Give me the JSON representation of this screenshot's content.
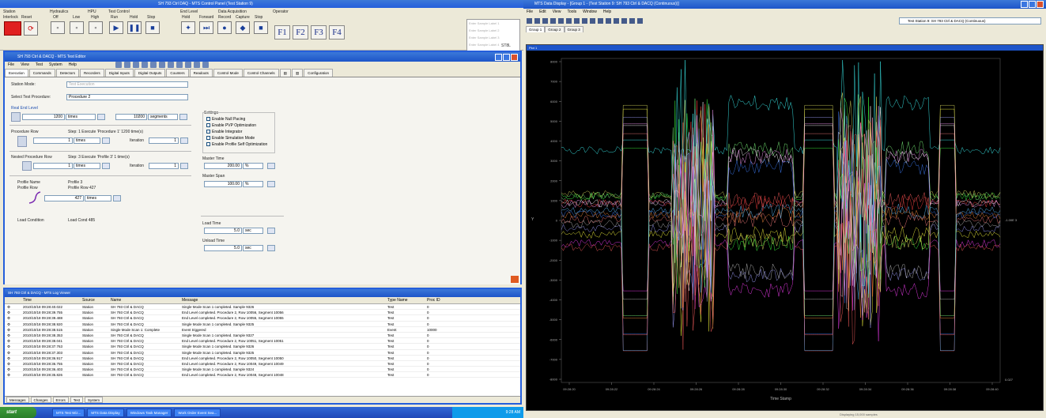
{
  "control_panel": {
    "title": "SH 793 Ctrl DAQ - MTS Control Panel (Test Station 9)",
    "station_group": "Station",
    "hydraulics_group": "Hydraulics",
    "hpu_group": "HPU",
    "test_control_group": "Test Control",
    "station_buttons": [
      "Interlock",
      "Reset"
    ],
    "hydraulic_buttons": [
      "Off",
      "Low",
      "High"
    ],
    "test_buttons": [
      "Run",
      "Hold",
      "Stop"
    ],
    "limit_group": "End Level",
    "daq_group": "Data Acquisition",
    "daq_buttons": [
      "Hold",
      "Forward",
      "Record",
      "Capture",
      "Stop"
    ],
    "operator_group": "Operator",
    "fkeys": [
      "F1",
      "F2",
      "F3",
      "F4"
    ],
    "ext_labels": [
      "Enter Sample Label 1",
      "Enter Sample Label 2",
      "Enter Sample Label 3",
      "Enter Sample Label 4"
    ],
    "ext_status": "ST8L"
  },
  "editor": {
    "title": "SH 793 Ctrl & DACQ - MTS Test Editor",
    "menu": [
      "File",
      "View",
      "Test",
      "System",
      "Help"
    ],
    "tabs": [
      "Execution",
      "Commands",
      "Detectors",
      "Recorders",
      "Digital Inputs",
      "Digital Outputs",
      "Counters",
      "Readouts",
      "Control Mode",
      "Control Channels",
      "",
      "",
      "Configuration"
    ],
    "station_mode_label": "Station Mode:",
    "station_mode_value": "Test Execution",
    "select_procedure_label": "Select Test Procedure:",
    "select_procedure_value": "Procedure 2",
    "end_level_label": "Real End Level",
    "end_level_value": "1200",
    "end_level_unit": "times",
    "segments_value": "10200",
    "segments_unit": "segments",
    "procedure_row_label": "Procedure Row",
    "procedure_row_info": "Step: 1 Execute 'Procedure 1' 1200 time(s)",
    "procedure_row_value": "1",
    "procedure_row_unit": "times",
    "iteration_label": "Iteration",
    "iteration_value": "1",
    "nested_label": "Nested Procedure Row",
    "nested_info": "Step: 3 Execute 'Profile 3' 1 time(s)",
    "nested_value": "1",
    "nested_unit": "times",
    "nested_iter_label": "Iteration",
    "nested_iter_value": "1",
    "profile_name_label": "Profile Name",
    "profile_name_value": "Profile 3",
    "profile_row_label": "Profile Row",
    "profile_row_value": "Profile Row 427",
    "profile_row_field": "427",
    "profile_row_unit": "times",
    "load_condition_label": "Load Condition",
    "load_condition_value": "Load Cond 485",
    "settings_title": "Settings",
    "settings": [
      "Enable Null Pacing",
      "Enable PVP Optimization",
      "Enable Integrator",
      "Enable Simulation Mode",
      "Enable Profile Self Optimization"
    ],
    "master_time_label": "Master Time",
    "master_time_value": "200.00",
    "master_time_unit": "%",
    "master_span_label": "Master Span",
    "master_span_value": "100.00",
    "master_span_unit": "%",
    "load_time_label": "Load Time",
    "load_time_value": "5.0",
    "load_time_unit": "sec",
    "unload_time_label": "Unload Time",
    "unload_time_value": "5.0",
    "unload_time_unit": "sec"
  },
  "log": {
    "title": "SH 793 Ctrl & DACQ - MTS Log Viewer",
    "columns": [
      "",
      "Time",
      "Source",
      "Name",
      "Message",
      "Type Name",
      "Proc ID"
    ],
    "rows": [
      [
        "2010/10/18 09:28:40.022",
        "Station",
        "SH 793 Ctrl & DACQ",
        "Single Mode Scan 1 completed.  Sample 9326",
        "Test",
        "0"
      ],
      [
        "2010/10/18 09:28:39.755",
        "Station",
        "SH 793 Ctrl & DACQ",
        "End Level completed.  Procedure 2, Row 10056, Segment 10056",
        "Test",
        "0"
      ],
      [
        "2010/10/18 09:28:39.488",
        "Station",
        "SH 793 Ctrl & DACQ",
        "End Level completed.  Procedure 2, Row 10055, Segment 10055",
        "Test",
        "0"
      ],
      [
        "2010/10/18 09:28:38.920",
        "Station",
        "SH 793 Ctrl & DACQ",
        "Single Mode Scan 1 completed.  Sample 9325",
        "Test",
        "0"
      ],
      [
        "2010/10/18 09:28:38.515",
        "Station",
        "Single Mode Scan 1: Complete",
        "Event triggered",
        "Event",
        "10000"
      ],
      [
        "2010/10/18 09:28:38.353",
        "Station",
        "SH 793 Ctrl & DACQ",
        "Single Mode Scan 1 completed.  Sample 9327",
        "Test",
        "0"
      ],
      [
        "2010/10/18 09:28:38.041",
        "Station",
        "SH 793 Ctrl & DACQ",
        "End Level completed.  Procedure 2, Row 10051, Segment 10051",
        "Test",
        "0"
      ],
      [
        "2010/10/18 09:28:37.763",
        "Station",
        "SH 793 Ctrl & DACQ",
        "Single Mode Scan 1 completed.  Sample 9326",
        "Test",
        "0"
      ],
      [
        "2010/10/18 09:28:37.303",
        "Station",
        "SH 793 Ctrl & DACQ",
        "Single Mode Scan 1 completed.  Sample 9325",
        "Test",
        "0"
      ],
      [
        "2010/10/18 09:28:36.917",
        "Station",
        "SH 793 Ctrl & DACQ",
        "End Level completed.  Procedure 2, Row 10050, Segment 10050",
        "Test",
        "0"
      ],
      [
        "2010/10/18 09:28:36.755",
        "Station",
        "SH 793 Ctrl & DACQ",
        "End Level completed.  Procedure 2, Row 10049, Segment 10049",
        "Test",
        "0"
      ],
      [
        "2010/10/18 09:28:36.403",
        "Station",
        "SH 793 Ctrl & DACQ",
        "Single Mode Scan 1 completed.  Sample 9324",
        "Test",
        "0"
      ],
      [
        "2010/10/18 09:28:35.826",
        "Station",
        "SH 793 Ctrl & DACQ",
        "End Level completed.  Procedure 2, Row 10048, Segment 10048",
        "Test",
        "0"
      ]
    ],
    "tabs": [
      "Messages",
      "Changes",
      "Errors",
      "Test",
      "System"
    ]
  },
  "taskbar": {
    "start": "start",
    "tasks": [
      "MTS Test Wiz...",
      "MTS Data Display",
      "Windows Task Manager",
      "Work Order Event Sea..."
    ],
    "clock": "9:28 AM"
  },
  "data_display": {
    "title": "MTS Data Display - [Group 1 - (Test Station 9: SH 793 Ctrl & DACQ (Continuous))]",
    "menu": [
      "File",
      "Edit",
      "View",
      "Tools",
      "Window",
      "Help"
    ],
    "station_select": "Test Station 9: SH 793 Ctrl & DACQ (Continuous)",
    "tabs": [
      "Group 1",
      "Group 2",
      "Group 3"
    ],
    "plot_header": "Plot 1",
    "xlabel": "Time Stamp",
    "ylabel": "Y",
    "right_label": "-1.00E 3",
    "right_bottom": "0.027",
    "status": "Displaying 15,000 samples",
    "y_ticks": [
      "8000",
      "7000",
      "6000",
      "5000",
      "4000",
      "3000",
      "2000",
      "1000",
      "0",
      "-1000",
      "-2000",
      "-3000",
      "-4000",
      "-5000",
      "-6000",
      "-7000",
      "-8000"
    ],
    "x_ticks": [
      "09:28:20",
      "09:28:22",
      "09:28:24",
      "09:28:26",
      "09:28:28",
      "09:28:30",
      "09:28:32",
      "09:28:34",
      "09:28:36",
      "09:28:38",
      "09:28:40"
    ]
  },
  "colors": {
    "xp_blue": "#245edb",
    "stop_red": "#e02020",
    "plot_bg": "#000000"
  }
}
